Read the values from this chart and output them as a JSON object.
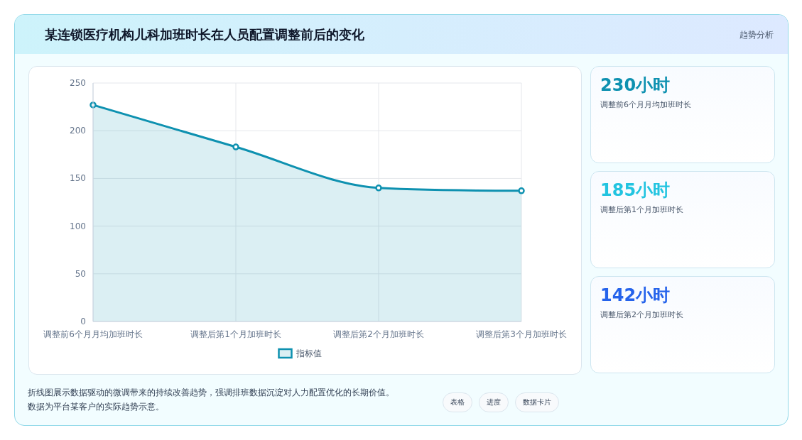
{
  "chart_data": [
    {
      "type": "area",
      "title": "某连锁医疗机构儿科加班时长在人员配置调整前后的变化",
      "categories": [
        "调整前6个月月均加班时长",
        "调整后第1个月加班时长",
        "调整后第2个月加班时长",
        "调整后第3个月加班时长"
      ],
      "series": [
        {
          "name": "指标值",
          "color": "#0e91b0",
          "values": [
            227,
            183,
            140,
            137
          ]
        }
      ],
      "ylim": [
        0,
        250
      ],
      "yticks": [
        0,
        50,
        100,
        150,
        200,
        250
      ],
      "grid": true,
      "legend": "bottom",
      "marker": "circle",
      "line_style": "solid",
      "annotations": [
        "趋势分析",
        "折线图展示数据驱动的微调带来的持续改善趋势，强调排班数据沉淀对人力配置优化的长期价值。",
        "数据为平台某客户的实际趋势示意。",
        "表格",
        "进度",
        "数据卡片"
      ]
    },
    {
      "type": "other",
      "title": "230小时",
      "subtitle": "调整前6个月月均加班时长",
      "color": "#0e91b0"
    },
    {
      "type": "other",
      "title": "185小时",
      "subtitle": "调整后第1个月加班时长",
      "color": "#22c4e0"
    },
    {
      "type": "other",
      "title": "142小时",
      "subtitle": "调整后第2个月加班时长",
      "color": "#2563eb"
    }
  ]
}
